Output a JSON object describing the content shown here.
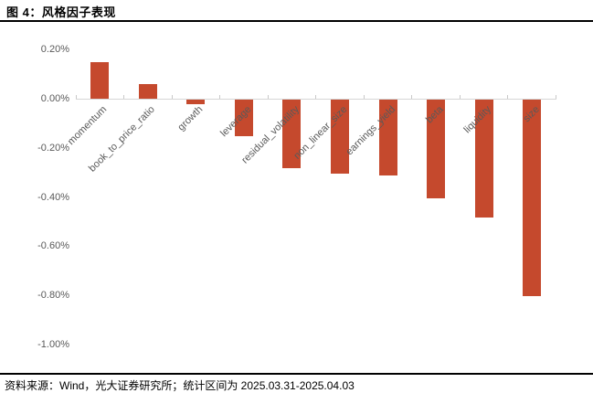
{
  "title": "图 4：风格因子表现",
  "footer": "资料来源：Wind，光大证券研究所；统计区间为 2025.03.31-2025.04.03",
  "chart_data": {
    "type": "bar",
    "title": "风格因子表现",
    "categories": [
      "momentum",
      "book_to_price_ratio",
      "growth",
      "leverage",
      "residual_volatility",
      "non_linear_size",
      "earnings_yield",
      "beta",
      "liquidity",
      "size"
    ],
    "values": [
      0.15,
      0.06,
      -0.02,
      -0.15,
      -0.28,
      -0.3,
      -0.31,
      -0.4,
      -0.48,
      -0.8
    ],
    "unit": "%",
    "xlabel": "",
    "ylabel": "",
    "ylim": [
      -1.0,
      0.2
    ],
    "ytick_step": 0.2,
    "ytick_labels": [
      "0.20%",
      "0.00%",
      "-0.20%",
      "-0.40%",
      "-0.60%",
      "-0.80%",
      "-1.00%"
    ],
    "ytick_values": [
      0.2,
      0.0,
      -0.2,
      -0.4,
      -0.6,
      -0.8,
      -1.0
    ],
    "grid": false,
    "legend": "none",
    "bar_color": "#c5492d",
    "axis_color": "#d6d6d6",
    "tick_color": "#c9c9c9",
    "label_color": "#595959"
  }
}
